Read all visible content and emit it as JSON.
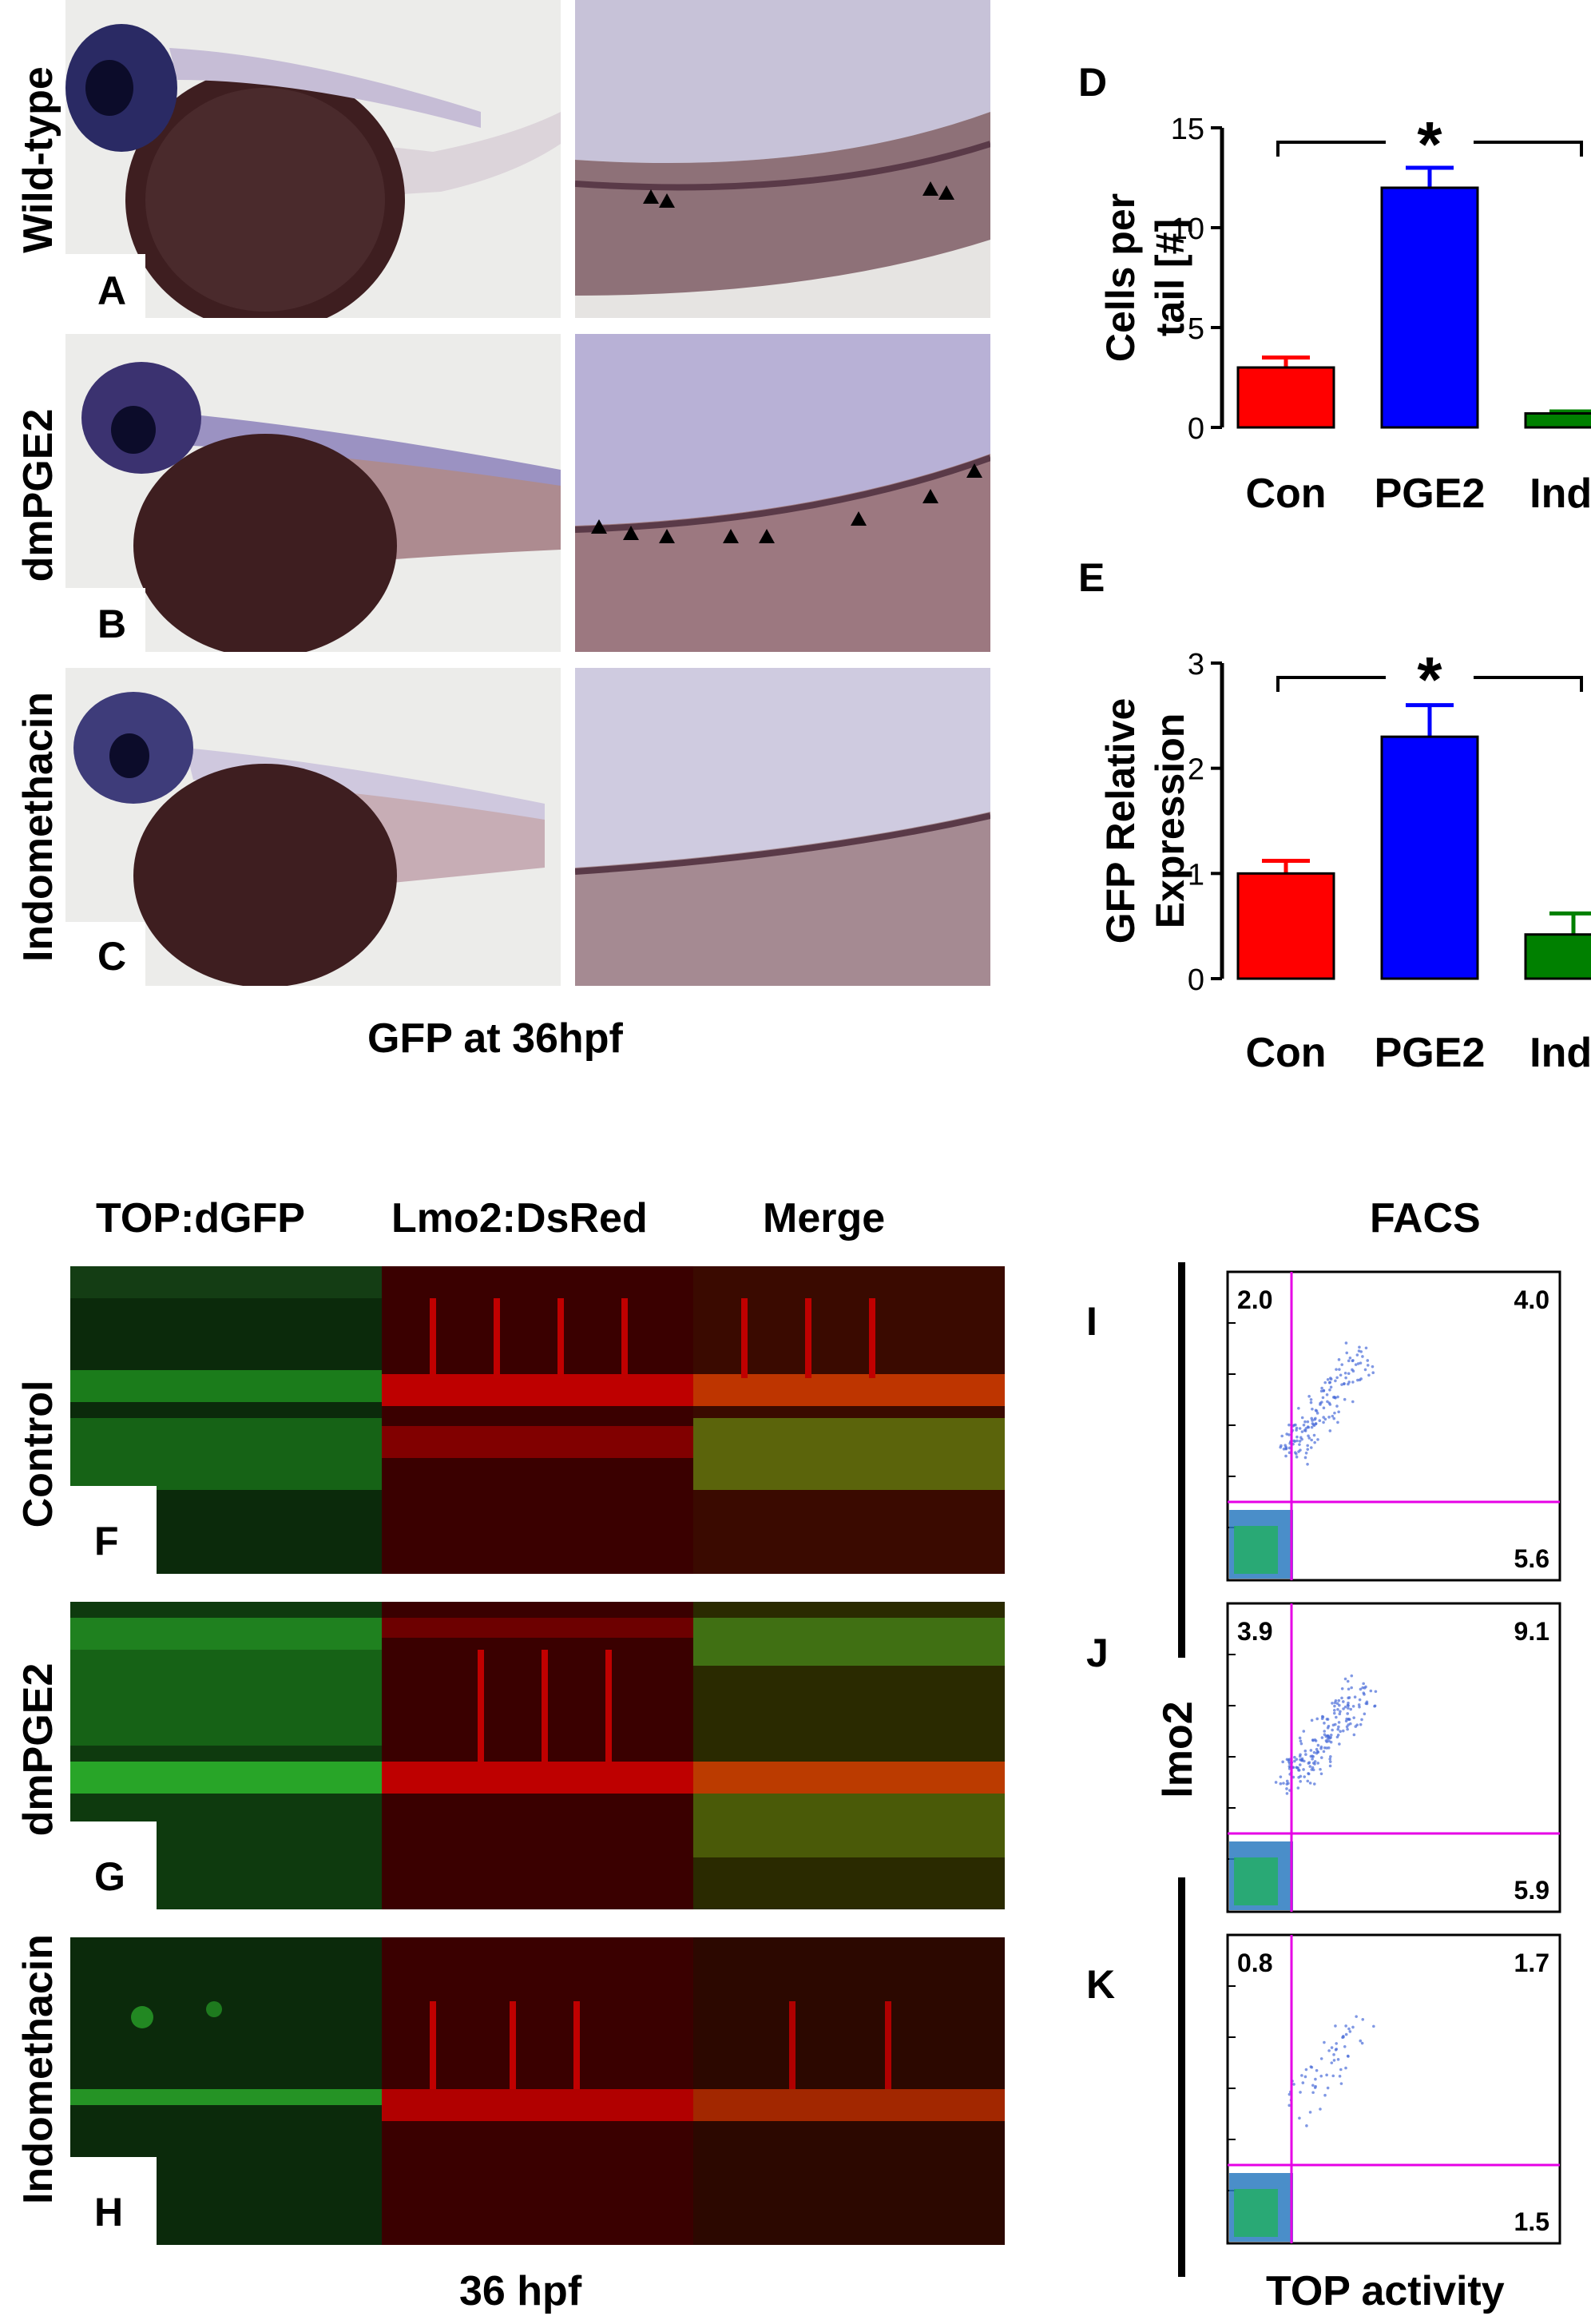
{
  "top_section": {
    "rows": [
      {
        "label": "Wild-type",
        "letter": "A"
      },
      {
        "label": "dmPGE2",
        "letter": "B"
      },
      {
        "label": "Indomethacin",
        "letter": "C"
      }
    ],
    "caption": "GFP at 36hpf"
  },
  "chart_data": [
    {
      "type": "bar",
      "panel": "D",
      "categories": [
        "Con",
        "PGE2",
        "Indo"
      ],
      "values": [
        3.0,
        12.0,
        0.7
      ],
      "errors": [
        0.5,
        1.0,
        0.1
      ],
      "colors": [
        "#ff0000",
        "#0000ff",
        "#008000"
      ],
      "ylabel_line1": "Cells per",
      "ylabel_line2": "tail [#]",
      "ylim": [
        0,
        15
      ],
      "yticks": [
        "0",
        "5",
        "10",
        "15"
      ],
      "significance": "*"
    },
    {
      "type": "bar",
      "panel": "E",
      "categories": [
        "Con",
        "PGE2",
        "Indo"
      ],
      "values": [
        1.0,
        2.3,
        0.42
      ],
      "errors": [
        0.12,
        0.3,
        0.2
      ],
      "colors": [
        "#ff0000",
        "#0000ff",
        "#008000"
      ],
      "ylabel_line1": "GFP Relative",
      "ylabel_line2": "Expression",
      "ylim": [
        0,
        3
      ],
      "yticks": [
        "0",
        "1",
        "2",
        "3"
      ],
      "significance": "*"
    }
  ],
  "bottom_section": {
    "column_headers": [
      "TOP:dGFP",
      "Lmo2:DsRed",
      "Merge"
    ],
    "rows": [
      {
        "label": "Control",
        "letter": "F"
      },
      {
        "label": "dmPGE2",
        "letter": "G"
      },
      {
        "label": "Indomethacin",
        "letter": "H"
      }
    ],
    "caption": "36 hpf"
  },
  "facs": {
    "title": "FACS",
    "ylabel": "lmo2",
    "xlabel": "TOP activity",
    "plots": [
      {
        "letter": "I",
        "top_left": "2.0",
        "top_right": "4.0",
        "bottom_right": "5.6"
      },
      {
        "letter": "J",
        "top_left": "3.9",
        "top_right": "9.1",
        "bottom_right": "5.9"
      },
      {
        "letter": "K",
        "top_left": "0.8",
        "top_right": "1.7",
        "bottom_right": "1.5"
      }
    ]
  }
}
